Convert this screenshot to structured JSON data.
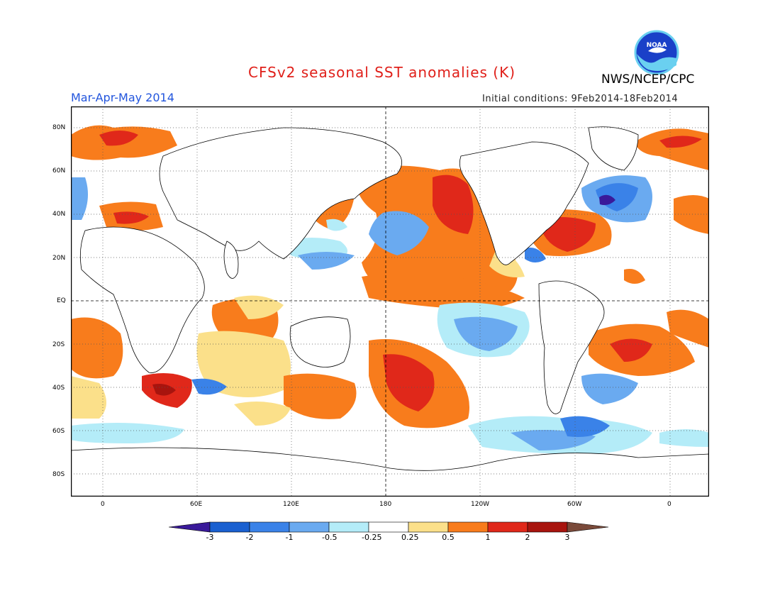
{
  "header": {
    "title": "CFSv2 seasonal SST anomalies (K)",
    "agency": "NWS/NCEP/CPC",
    "season": "Mar-Apr-May 2014",
    "initial_conditions": "Initial conditions: 9Feb2014-18Feb2014",
    "logo_text": "NOAA"
  },
  "map": {
    "lat_labels": [
      "80N",
      "60N",
      "40N",
      "20N",
      "EQ",
      "20S",
      "40S",
      "60S",
      "80S"
    ],
    "lon_labels": [
      "0",
      "60E",
      "120E",
      "180",
      "120W",
      "60W",
      "0"
    ],
    "land_color": "#ffffff",
    "grid": "dotted"
  },
  "colorbar": {
    "labels": [
      "-3",
      "-2",
      "-1",
      "-0.5",
      "-0.25",
      "0.25",
      "0.5",
      "1",
      "2",
      "3"
    ],
    "colors": [
      "#3a1a9a",
      "#1a60d0",
      "#3a82e8",
      "#6aaaf0",
      "#b4ecf8",
      "#ffffff",
      "#fbe08a",
      "#f87c1c",
      "#e0281a",
      "#a8140e",
      "#7a4a3a"
    ]
  },
  "legend_colors": {
    "deep_blue": "#1a60d0",
    "blue": "#3a82e8",
    "light_blue": "#6aaaf0",
    "pale_blue": "#b4ecf8",
    "pale_yellow": "#fbe08a",
    "orange": "#f87c1c",
    "red": "#e0281a",
    "dark_red": "#a8140e",
    "darkest_blue": "#3a1a9a",
    "brown": "#7a4a3a"
  }
}
